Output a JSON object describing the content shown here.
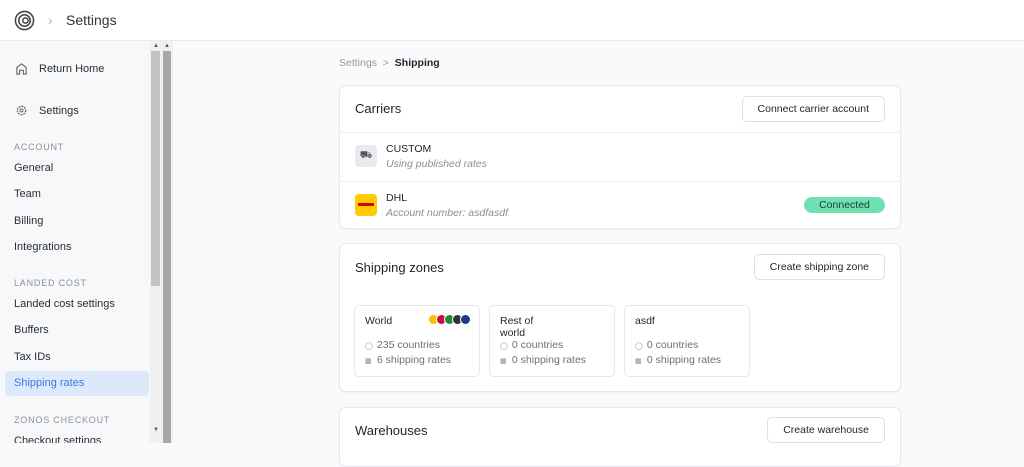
{
  "header": {
    "title": "Settings",
    "logo": "zonos-logo",
    "chevron": "chevron-right-icon"
  },
  "sidebar": {
    "top": [
      {
        "label": "Return Home",
        "icon": "home-icon"
      },
      {
        "label": "Settings",
        "icon": "gear-icon"
      }
    ],
    "sections": [
      {
        "title": "ACCOUNT",
        "items": [
          "General",
          "Team",
          "Billing",
          "Integrations"
        ]
      },
      {
        "title": "LANDED COST",
        "items": [
          "Landed cost settings",
          "Buffers",
          "Tax IDs",
          "Shipping rates"
        ]
      },
      {
        "title": "ZONOS CHECKOUT",
        "items": [
          "Checkout settings"
        ]
      }
    ],
    "active": "Shipping rates"
  },
  "breadcrumb": {
    "parent": "Settings",
    "sep": ">",
    "current": "Shipping"
  },
  "carriers": {
    "title": "Carriers",
    "button": "Connect carrier account",
    "rows": [
      {
        "name": "CUSTOM",
        "sub": "Using published rates",
        "icon": "truck-icon"
      },
      {
        "name": "DHL",
        "sub": "Account number: asdfasdf",
        "icon": "dhl-logo",
        "status": "Connected"
      }
    ]
  },
  "zones": {
    "title": "Shipping zones",
    "button": "Create shipping zone",
    "items": [
      {
        "name": "World",
        "countries": "235 countries",
        "rates": "6 shipping rates"
      },
      {
        "name": "Rest of world",
        "countries": "0 countries",
        "rates": "0 shipping rates"
      },
      {
        "name": "asdf",
        "countries": "0 countries",
        "rates": "0 shipping rates"
      }
    ]
  },
  "warehouses": {
    "title": "Warehouses",
    "button": "Create warehouse"
  },
  "colors": {
    "accent": "#3b7be0",
    "active_bg": "#dde9fb",
    "connected": "#6ee0b1",
    "dhl": "#ffcc00"
  }
}
